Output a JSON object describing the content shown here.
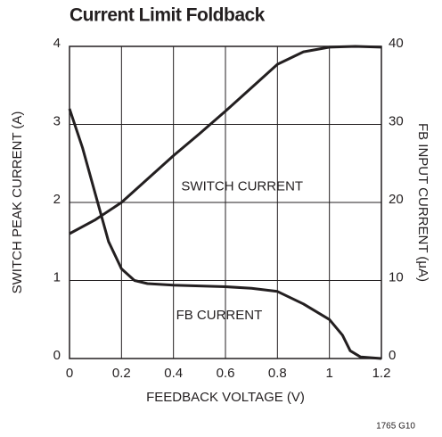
{
  "chart_data": {
    "type": "line",
    "title": "Current Limit Foldback",
    "xlabel": "FEEDBACK VOLTAGE (V)",
    "ylabel": "SWITCH PEAK CURRENT (A)",
    "y2label": "FB INPUT CURRENT (μA)",
    "xlim": [
      0,
      1.2
    ],
    "xticks": [
      0,
      0.2,
      0.4,
      0.6,
      0.8,
      1,
      1.2
    ],
    "ylim": [
      0,
      4
    ],
    "yticks": [
      0,
      1,
      2,
      3,
      4
    ],
    "y2lim": [
      0,
      40
    ],
    "y2ticks": [
      0,
      10,
      20,
      30,
      40
    ],
    "grid": true,
    "series": [
      {
        "name": "SWITCH CURRENT",
        "color": "#231f20",
        "axis": "y",
        "x": [
          0,
          0.1,
          0.2,
          0.3,
          0.4,
          0.5,
          0.6,
          0.7,
          0.8,
          0.9,
          1.0,
          1.1,
          1.2
        ],
        "values": [
          1.6,
          1.78,
          2.0,
          2.3,
          2.6,
          2.88,
          3.17,
          3.47,
          3.77,
          3.93,
          3.99,
          4.0,
          3.99
        ]
      },
      {
        "name": "FB CURRENT",
        "color": "#231f20",
        "axis": "y2",
        "x": [
          0,
          0.05,
          0.1,
          0.15,
          0.2,
          0.25,
          0.3,
          0.4,
          0.5,
          0.6,
          0.7,
          0.8,
          0.9,
          1.0,
          1.05,
          1.08,
          1.12,
          1.2
        ],
        "values": [
          32,
          27,
          21,
          15,
          11.5,
          10,
          9.6,
          9.4,
          9.3,
          9.2,
          9.0,
          8.6,
          7,
          5,
          3,
          1,
          0.2,
          0
        ]
      }
    ],
    "note": "1765 G10"
  }
}
